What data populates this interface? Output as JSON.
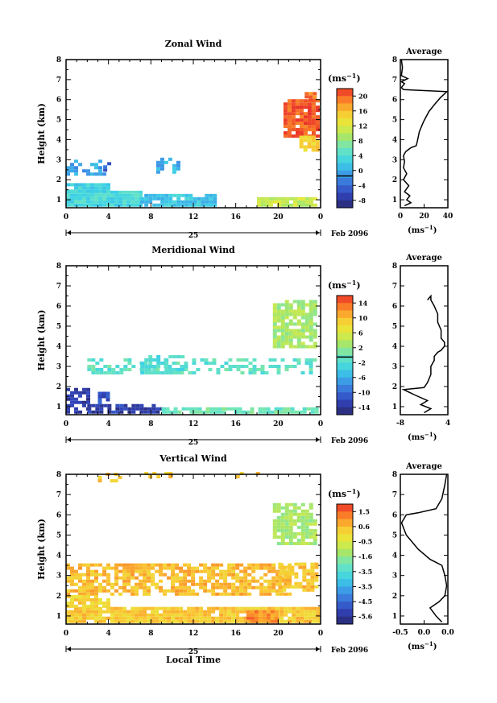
{
  "chart_data": [
    {
      "type": "heatmap",
      "title": "Zonal Wind",
      "ylabel": "Height (km)",
      "ylim": [
        0.6,
        8
      ],
      "yticks": [
        "1",
        "2",
        "3",
        "4",
        "5",
        "6",
        "7",
        "8"
      ],
      "xlim": [
        0,
        24
      ],
      "xticks": [
        "0",
        "4",
        "8",
        "12",
        "16",
        "20",
        "0"
      ],
      "date_label": "25",
      "date_suffix": "Feb 2096",
      "unit": "(ms⁻¹)",
      "colorbar": {
        "min": -8,
        "max": 22,
        "ticks": [
          20,
          16,
          12,
          8,
          4,
          0,
          -4,
          -8
        ],
        "zero_line": 0
      },
      "average": {
        "title": "Average",
        "xlim": [
          0,
          45
        ],
        "xticks": [
          "0",
          "20",
          "40"
        ],
        "unit": "(ms⁻¹)",
        "profile": [
          [
            4,
            0.7
          ],
          [
            10,
            0.85
          ],
          [
            6,
            1.0
          ],
          [
            9,
            1.2
          ],
          [
            4,
            1.4
          ],
          [
            8,
            1.7
          ],
          [
            3,
            2.0
          ],
          [
            6,
            2.3
          ],
          [
            3,
            2.6
          ],
          [
            4,
            2.9
          ],
          [
            3,
            3.2
          ],
          [
            5,
            3.4
          ],
          [
            10,
            3.6
          ],
          [
            15,
            3.7
          ],
          [
            16,
            3.9
          ],
          [
            18,
            4.4
          ],
          [
            22,
            4.9
          ],
          [
            27,
            5.4
          ],
          [
            33,
            5.8
          ],
          [
            38,
            6.1
          ],
          [
            42,
            6.3
          ],
          [
            44,
            6.4
          ],
          [
            3,
            6.5
          ],
          [
            1,
            6.6
          ],
          [
            4,
            6.8
          ],
          [
            1,
            6.9
          ],
          [
            7,
            7.05
          ],
          [
            1,
            7.2
          ],
          [
            2,
            7.6
          ],
          [
            1,
            8.0
          ]
        ]
      }
    },
    {
      "type": "heatmap",
      "title": "Meridional Wind",
      "ylabel": "Height (km)",
      "ylim": [
        0.6,
        8
      ],
      "yticks": [
        "1",
        "2",
        "3",
        "4",
        "5",
        "6",
        "7",
        "8"
      ],
      "xlim": [
        0,
        24
      ],
      "xticks": [
        "0",
        "4",
        "8",
        "12",
        "16",
        "20",
        "0"
      ],
      "date_label": "25",
      "date_suffix": "Feb 2096",
      "unit": "(ms⁻¹)",
      "colorbar": {
        "min": -15,
        "max": 16,
        "ticks": [
          14,
          10,
          6,
          2,
          -2,
          -6,
          -10,
          -14
        ],
        "zero_line": 0
      },
      "average": {
        "title": "Average",
        "xlim": [
          -10,
          4
        ],
        "xticks": [
          "-8",
          "4"
        ],
        "unit": "(ms⁻¹)",
        "profile": [
          [
            -3,
            0.7
          ],
          [
            -1,
            0.9
          ],
          [
            -4,
            1.1
          ],
          [
            -2,
            1.3
          ],
          [
            -6,
            1.6
          ],
          [
            -9,
            1.85
          ],
          [
            -3,
            1.95
          ],
          [
            -2,
            2.2
          ],
          [
            -1,
            2.6
          ],
          [
            -1,
            3.0
          ],
          [
            0,
            3.3
          ],
          [
            0,
            3.5
          ],
          [
            1,
            3.7
          ],
          [
            2,
            3.8
          ],
          [
            3,
            4.0
          ],
          [
            3,
            4.2
          ],
          [
            2,
            4.4
          ],
          [
            2,
            4.8
          ],
          [
            1,
            5.2
          ],
          [
            1,
            5.6
          ],
          [
            0,
            6.0
          ],
          [
            -1,
            6.3
          ],
          [
            -1,
            6.5
          ],
          [
            -2,
            6.3
          ]
        ]
      }
    },
    {
      "type": "heatmap",
      "title": "Vertical Wind",
      "ylabel": "Height (km)",
      "xlabel": "Local Time",
      "ylim": [
        0.6,
        8
      ],
      "yticks": [
        "1",
        "2",
        "3",
        "4",
        "5",
        "6",
        "7",
        "8"
      ],
      "xlim": [
        0,
        24
      ],
      "xticks": [
        "0",
        "4",
        "8",
        "12",
        "16",
        "20",
        "0"
      ],
      "date_label": "25",
      "date_suffix": "Feb 2096",
      "unit": "(ms⁻¹)",
      "colorbar": {
        "min": -6.0,
        "max": 2.0,
        "ticks": [
          "1.5",
          "0.6",
          "-0.5",
          "-1.6",
          "-3.5",
          "-3.5",
          "-4.5",
          "-5.6"
        ]
      },
      "average": {
        "title": "Average",
        "xlim": [
          -0.8,
          0.0
        ],
        "xticks": [
          "-0.5",
          "0.0",
          "0.0"
        ],
        "unit": "(ms⁻¹)",
        "profile": [
          [
            -0.1,
            0.7
          ],
          [
            -0.2,
            1.0
          ],
          [
            -0.3,
            1.4
          ],
          [
            -0.15,
            1.7
          ],
          [
            -0.05,
            2.0
          ],
          [
            -0.02,
            2.5
          ],
          [
            -0.05,
            3.0
          ],
          [
            -0.1,
            3.5
          ],
          [
            -0.3,
            3.8
          ],
          [
            -0.5,
            4.3
          ],
          [
            -0.7,
            5.0
          ],
          [
            -0.78,
            5.6
          ],
          [
            -0.7,
            6.0
          ],
          [
            -0.5,
            6.1
          ],
          [
            -0.2,
            6.3
          ],
          [
            -0.1,
            6.8
          ],
          [
            -0.05,
            7.5
          ],
          [
            -0.02,
            8.0
          ]
        ]
      }
    }
  ]
}
